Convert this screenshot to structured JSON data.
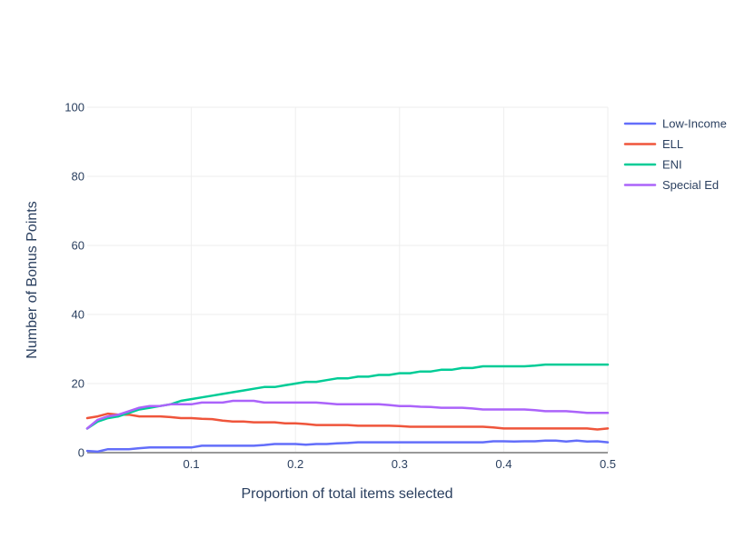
{
  "chart_data": {
    "type": "line",
    "title": "",
    "xlabel": "Proportion of total items selected",
    "ylabel": "Number of Bonus Points",
    "xlim": [
      0.0,
      0.5
    ],
    "ylim": [
      0,
      100
    ],
    "x_ticks": [
      0.1,
      0.2,
      0.3,
      0.4,
      0.5
    ],
    "x_tick_labels": [
      "0.1",
      "0.2",
      "0.3",
      "0.4",
      "0.5"
    ],
    "y_ticks": [
      0,
      20,
      40,
      60,
      80,
      100
    ],
    "y_tick_labels": [
      "0",
      "20",
      "40",
      "60",
      "80",
      "100"
    ],
    "grid": true,
    "legend_position": "top-right",
    "x": [
      0.0,
      0.01,
      0.02,
      0.03,
      0.04,
      0.05,
      0.06,
      0.07,
      0.08,
      0.09,
      0.1,
      0.11,
      0.12,
      0.13,
      0.14,
      0.15,
      0.16,
      0.17,
      0.18,
      0.19,
      0.2,
      0.21,
      0.22,
      0.23,
      0.24,
      0.25,
      0.26,
      0.27,
      0.28,
      0.29,
      0.3,
      0.31,
      0.32,
      0.33,
      0.34,
      0.35,
      0.36,
      0.37,
      0.38,
      0.39,
      0.4,
      0.41,
      0.42,
      0.43,
      0.44,
      0.45,
      0.46,
      0.47,
      0.48,
      0.49,
      0.5
    ],
    "series": [
      {
        "name": "Low-Income",
        "color": "#636efa",
        "values": [
          0.5,
          0.3,
          1.0,
          1.0,
          1.0,
          1.3,
          1.5,
          1.5,
          1.5,
          1.5,
          1.5,
          2.0,
          2.0,
          2.0,
          2.0,
          2.0,
          2.0,
          2.2,
          2.5,
          2.5,
          2.5,
          2.3,
          2.5,
          2.5,
          2.7,
          2.8,
          3.0,
          3.0,
          3.0,
          3.0,
          3.0,
          3.0,
          3.0,
          3.0,
          3.0,
          3.0,
          3.0,
          3.0,
          3.0,
          3.3,
          3.3,
          3.2,
          3.3,
          3.3,
          3.5,
          3.5,
          3.2,
          3.5,
          3.2,
          3.3,
          3.0
        ]
      },
      {
        "name": "ELL",
        "color": "#ef553b",
        "values": [
          10.0,
          10.5,
          11.3,
          11.0,
          11.0,
          10.5,
          10.5,
          10.5,
          10.3,
          10.0,
          10.0,
          9.8,
          9.7,
          9.3,
          9.0,
          9.0,
          8.8,
          8.8,
          8.8,
          8.5,
          8.5,
          8.3,
          8.0,
          8.0,
          8.0,
          8.0,
          7.8,
          7.8,
          7.8,
          7.8,
          7.7,
          7.5,
          7.5,
          7.5,
          7.5,
          7.5,
          7.5,
          7.5,
          7.5,
          7.3,
          7.0,
          7.0,
          7.0,
          7.0,
          7.0,
          7.0,
          7.0,
          7.0,
          7.0,
          6.7,
          7.0
        ]
      },
      {
        "name": "ENI",
        "color": "#00cc96",
        "values": [
          7.0,
          9.0,
          10.0,
          10.5,
          11.5,
          12.5,
          13.0,
          13.5,
          14.0,
          15.0,
          15.5,
          16.0,
          16.5,
          17.0,
          17.5,
          18.0,
          18.5,
          19.0,
          19.0,
          19.5,
          20.0,
          20.5,
          20.5,
          21.0,
          21.5,
          21.5,
          22.0,
          22.0,
          22.5,
          22.5,
          23.0,
          23.0,
          23.5,
          23.5,
          24.0,
          24.0,
          24.5,
          24.5,
          25.0,
          25.0,
          25.0,
          25.0,
          25.0,
          25.2,
          25.5,
          25.5,
          25.5,
          25.5,
          25.5,
          25.5,
          25.5
        ]
      },
      {
        "name": "Special Ed",
        "color": "#ab63fa",
        "values": [
          7.0,
          9.5,
          10.5,
          11.0,
          12.0,
          13.0,
          13.5,
          13.5,
          14.0,
          14.0,
          14.0,
          14.5,
          14.5,
          14.5,
          15.0,
          15.0,
          15.0,
          14.5,
          14.5,
          14.5,
          14.5,
          14.5,
          14.5,
          14.3,
          14.0,
          14.0,
          14.0,
          14.0,
          14.0,
          13.8,
          13.5,
          13.5,
          13.3,
          13.2,
          13.0,
          13.0,
          13.0,
          12.8,
          12.5,
          12.5,
          12.5,
          12.5,
          12.5,
          12.3,
          12.0,
          12.0,
          12.0,
          11.8,
          11.5,
          11.5,
          11.5
        ]
      }
    ]
  }
}
